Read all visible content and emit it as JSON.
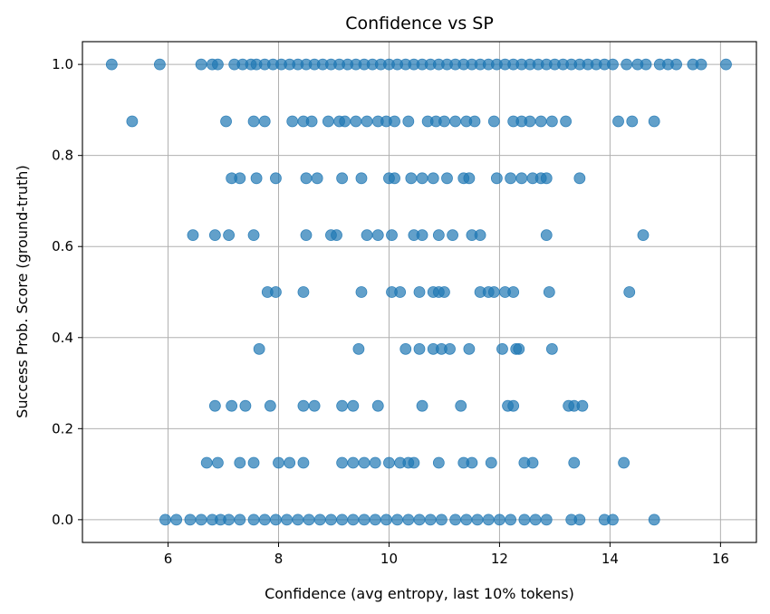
{
  "chart_data": {
    "type": "scatter",
    "title": "Confidence vs SP",
    "xlabel": "Confidence (avg entropy, last 10% tokens)",
    "ylabel": "Success Prob. Score (ground-truth)",
    "xlim": [
      4.45,
      16.65
    ],
    "ylim": [
      -0.05,
      1.05
    ],
    "xticks": [
      6,
      8,
      10,
      12,
      14,
      16
    ],
    "xtick_labels": [
      "6",
      "8",
      "10",
      "12",
      "14",
      "16"
    ],
    "yticks": [
      0.0,
      0.2,
      0.4,
      0.6,
      0.8,
      1.0
    ],
    "ytick_labels": [
      "0.0",
      "0.2",
      "0.4",
      "0.6",
      "0.8",
      "1.0"
    ],
    "grid": true,
    "legend": "none",
    "marker_color": "#1f77b4",
    "marker_alpha": 0.7,
    "series": [
      {
        "points": [
          [
            4.98,
            1.0
          ],
          [
            5.85,
            1.0
          ],
          [
            6.6,
            1.0
          ],
          [
            6.8,
            1.0
          ],
          [
            6.9,
            1.0
          ],
          [
            7.2,
            1.0
          ],
          [
            7.35,
            1.0
          ],
          [
            7.5,
            1.0
          ],
          [
            7.6,
            1.0
          ],
          [
            7.75,
            1.0
          ],
          [
            7.9,
            1.0
          ],
          [
            8.05,
            1.0
          ],
          [
            8.2,
            1.0
          ],
          [
            8.35,
            1.0
          ],
          [
            8.5,
            1.0
          ],
          [
            8.65,
            1.0
          ],
          [
            8.8,
            1.0
          ],
          [
            8.95,
            1.0
          ],
          [
            9.1,
            1.0
          ],
          [
            9.25,
            1.0
          ],
          [
            9.4,
            1.0
          ],
          [
            9.55,
            1.0
          ],
          [
            9.7,
            1.0
          ],
          [
            9.85,
            1.0
          ],
          [
            10.0,
            1.0
          ],
          [
            10.15,
            1.0
          ],
          [
            10.3,
            1.0
          ],
          [
            10.45,
            1.0
          ],
          [
            10.6,
            1.0
          ],
          [
            10.75,
            1.0
          ],
          [
            10.9,
            1.0
          ],
          [
            11.05,
            1.0
          ],
          [
            11.2,
            1.0
          ],
          [
            11.35,
            1.0
          ],
          [
            11.5,
            1.0
          ],
          [
            11.65,
            1.0
          ],
          [
            11.8,
            1.0
          ],
          [
            11.95,
            1.0
          ],
          [
            12.1,
            1.0
          ],
          [
            12.25,
            1.0
          ],
          [
            12.4,
            1.0
          ],
          [
            12.55,
            1.0
          ],
          [
            12.7,
            1.0
          ],
          [
            12.85,
            1.0
          ],
          [
            13.0,
            1.0
          ],
          [
            13.15,
            1.0
          ],
          [
            13.3,
            1.0
          ],
          [
            13.45,
            1.0
          ],
          [
            13.6,
            1.0
          ],
          [
            13.75,
            1.0
          ],
          [
            13.9,
            1.0
          ],
          [
            14.05,
            1.0
          ],
          [
            14.3,
            1.0
          ],
          [
            14.5,
            1.0
          ],
          [
            14.65,
            1.0
          ],
          [
            14.9,
            1.0
          ],
          [
            15.05,
            1.0
          ],
          [
            15.2,
            1.0
          ],
          [
            15.5,
            1.0
          ],
          [
            15.65,
            1.0
          ],
          [
            16.1,
            1.0
          ],
          [
            5.35,
            0.875
          ],
          [
            7.05,
            0.875
          ],
          [
            7.55,
            0.875
          ],
          [
            7.75,
            0.875
          ],
          [
            8.25,
            0.875
          ],
          [
            8.45,
            0.875
          ],
          [
            8.6,
            0.875
          ],
          [
            8.9,
            0.875
          ],
          [
            9.1,
            0.875
          ],
          [
            9.2,
            0.875
          ],
          [
            9.4,
            0.875
          ],
          [
            9.6,
            0.875
          ],
          [
            9.8,
            0.875
          ],
          [
            9.95,
            0.875
          ],
          [
            10.1,
            0.875
          ],
          [
            10.35,
            0.875
          ],
          [
            10.7,
            0.875
          ],
          [
            10.85,
            0.875
          ],
          [
            11.0,
            0.875
          ],
          [
            11.2,
            0.875
          ],
          [
            11.4,
            0.875
          ],
          [
            11.55,
            0.875
          ],
          [
            11.9,
            0.875
          ],
          [
            12.25,
            0.875
          ],
          [
            12.4,
            0.875
          ],
          [
            12.55,
            0.875
          ],
          [
            12.75,
            0.875
          ],
          [
            12.95,
            0.875
          ],
          [
            13.2,
            0.875
          ],
          [
            14.15,
            0.875
          ],
          [
            14.4,
            0.875
          ],
          [
            14.8,
            0.875
          ],
          [
            7.15,
            0.75
          ],
          [
            7.3,
            0.75
          ],
          [
            7.6,
            0.75
          ],
          [
            7.95,
            0.75
          ],
          [
            8.5,
            0.75
          ],
          [
            8.7,
            0.75
          ],
          [
            9.15,
            0.75
          ],
          [
            9.5,
            0.75
          ],
          [
            10.0,
            0.75
          ],
          [
            10.1,
            0.75
          ],
          [
            10.4,
            0.75
          ],
          [
            10.6,
            0.75
          ],
          [
            10.8,
            0.75
          ],
          [
            11.05,
            0.75
          ],
          [
            11.35,
            0.75
          ],
          [
            11.45,
            0.75
          ],
          [
            11.95,
            0.75
          ],
          [
            12.2,
            0.75
          ],
          [
            12.4,
            0.75
          ],
          [
            12.6,
            0.75
          ],
          [
            12.75,
            0.75
          ],
          [
            12.85,
            0.75
          ],
          [
            13.45,
            0.75
          ],
          [
            6.45,
            0.625
          ],
          [
            6.85,
            0.625
          ],
          [
            7.1,
            0.625
          ],
          [
            7.55,
            0.625
          ],
          [
            8.5,
            0.625
          ],
          [
            8.95,
            0.625
          ],
          [
            9.05,
            0.625
          ],
          [
            9.6,
            0.625
          ],
          [
            9.8,
            0.625
          ],
          [
            10.05,
            0.625
          ],
          [
            10.45,
            0.625
          ],
          [
            10.6,
            0.625
          ],
          [
            10.9,
            0.625
          ],
          [
            11.15,
            0.625
          ],
          [
            11.5,
            0.625
          ],
          [
            11.65,
            0.625
          ],
          [
            12.85,
            0.625
          ],
          [
            14.6,
            0.625
          ],
          [
            7.8,
            0.5
          ],
          [
            7.95,
            0.5
          ],
          [
            8.45,
            0.5
          ],
          [
            9.5,
            0.5
          ],
          [
            10.05,
            0.5
          ],
          [
            10.2,
            0.5
          ],
          [
            10.55,
            0.5
          ],
          [
            10.8,
            0.5
          ],
          [
            10.9,
            0.5
          ],
          [
            11.0,
            0.5
          ],
          [
            11.65,
            0.5
          ],
          [
            11.8,
            0.5
          ],
          [
            11.9,
            0.5
          ],
          [
            12.1,
            0.5
          ],
          [
            12.25,
            0.5
          ],
          [
            12.9,
            0.5
          ],
          [
            14.35,
            0.5
          ],
          [
            7.65,
            0.375
          ],
          [
            9.45,
            0.375
          ],
          [
            10.3,
            0.375
          ],
          [
            10.55,
            0.375
          ],
          [
            10.8,
            0.375
          ],
          [
            10.95,
            0.375
          ],
          [
            11.1,
            0.375
          ],
          [
            11.45,
            0.375
          ],
          [
            12.05,
            0.375
          ],
          [
            12.3,
            0.375
          ],
          [
            12.35,
            0.375
          ],
          [
            12.95,
            0.375
          ],
          [
            6.85,
            0.25
          ],
          [
            7.15,
            0.25
          ],
          [
            7.4,
            0.25
          ],
          [
            7.85,
            0.25
          ],
          [
            8.45,
            0.25
          ],
          [
            8.65,
            0.25
          ],
          [
            9.15,
            0.25
          ],
          [
            9.35,
            0.25
          ],
          [
            9.8,
            0.25
          ],
          [
            10.6,
            0.25
          ],
          [
            11.3,
            0.25
          ],
          [
            12.15,
            0.25
          ],
          [
            12.25,
            0.25
          ],
          [
            13.25,
            0.25
          ],
          [
            13.35,
            0.25
          ],
          [
            13.5,
            0.25
          ],
          [
            6.7,
            0.125
          ],
          [
            6.9,
            0.125
          ],
          [
            7.3,
            0.125
          ],
          [
            7.55,
            0.125
          ],
          [
            8.0,
            0.125
          ],
          [
            8.2,
            0.125
          ],
          [
            8.45,
            0.125
          ],
          [
            9.15,
            0.125
          ],
          [
            9.35,
            0.125
          ],
          [
            9.55,
            0.125
          ],
          [
            9.75,
            0.125
          ],
          [
            10.0,
            0.125
          ],
          [
            10.2,
            0.125
          ],
          [
            10.35,
            0.125
          ],
          [
            10.45,
            0.125
          ],
          [
            10.9,
            0.125
          ],
          [
            11.35,
            0.125
          ],
          [
            11.5,
            0.125
          ],
          [
            11.85,
            0.125
          ],
          [
            12.45,
            0.125
          ],
          [
            12.6,
            0.125
          ],
          [
            13.35,
            0.125
          ],
          [
            14.25,
            0.125
          ],
          [
            5.95,
            0.0
          ],
          [
            6.15,
            0.0
          ],
          [
            6.4,
            0.0
          ],
          [
            6.6,
            0.0
          ],
          [
            6.8,
            0.0
          ],
          [
            6.95,
            0.0
          ],
          [
            7.1,
            0.0
          ],
          [
            7.3,
            0.0
          ],
          [
            7.55,
            0.0
          ],
          [
            7.75,
            0.0
          ],
          [
            7.95,
            0.0
          ],
          [
            8.15,
            0.0
          ],
          [
            8.35,
            0.0
          ],
          [
            8.55,
            0.0
          ],
          [
            8.75,
            0.0
          ],
          [
            8.95,
            0.0
          ],
          [
            9.15,
            0.0
          ],
          [
            9.35,
            0.0
          ],
          [
            9.55,
            0.0
          ],
          [
            9.75,
            0.0
          ],
          [
            9.95,
            0.0
          ],
          [
            10.15,
            0.0
          ],
          [
            10.35,
            0.0
          ],
          [
            10.55,
            0.0
          ],
          [
            10.75,
            0.0
          ],
          [
            10.95,
            0.0
          ],
          [
            11.2,
            0.0
          ],
          [
            11.4,
            0.0
          ],
          [
            11.6,
            0.0
          ],
          [
            11.8,
            0.0
          ],
          [
            12.0,
            0.0
          ],
          [
            12.2,
            0.0
          ],
          [
            12.45,
            0.0
          ],
          [
            12.65,
            0.0
          ],
          [
            12.85,
            0.0
          ],
          [
            13.3,
            0.0
          ],
          [
            13.45,
            0.0
          ],
          [
            13.9,
            0.0
          ],
          [
            14.05,
            0.0
          ],
          [
            14.8,
            0.0
          ]
        ]
      }
    ]
  }
}
